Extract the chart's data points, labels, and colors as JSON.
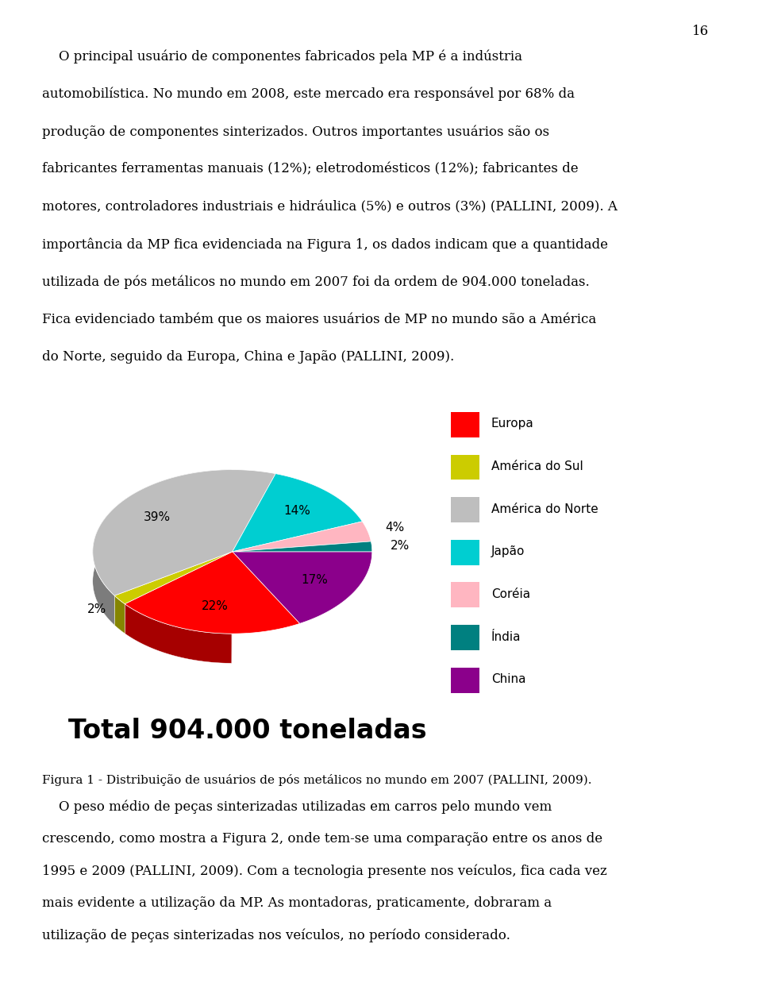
{
  "pie_order": [
    "China",
    "Europa",
    "América do Sul",
    "América do Norte",
    "Japão",
    "Coréia",
    "Índia"
  ],
  "pie_values": [
    17,
    22,
    2,
    39,
    14,
    4,
    2
  ],
  "pie_colors": [
    "#8B008B",
    "#FF0000",
    "#CCCC00",
    "#BEBEBE",
    "#00CED1",
    "#FFB6C1",
    "#008080"
  ],
  "legend_labels": [
    "Europa",
    "América do Sul",
    "América do Norte",
    "Japão",
    "Coréia",
    "Índia",
    "China"
  ],
  "legend_colors": [
    "#FF0000",
    "#CCCC00",
    "#BEBEBE",
    "#00CED1",
    "#FFB6C1",
    "#008080",
    "#8B008B"
  ],
  "pct_labels": [
    "17%",
    "22%",
    "2%",
    "39%",
    "14%",
    "4%",
    "2%"
  ],
  "subtitle": "Total 904.000 toneladas",
  "caption": "Figura 1 - Distribuição de usuários de pós metálicos no mundo em 2007 (PALLINI, 2009).",
  "page_number": "16"
}
